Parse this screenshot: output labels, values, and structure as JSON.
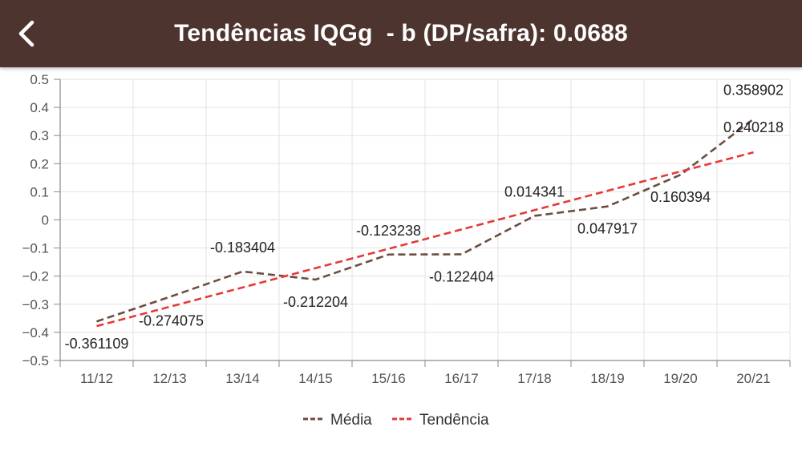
{
  "header": {
    "title": "Tendências IQGg  - b (DP/safra): 0.0688",
    "back_icon": "chevron-left-icon",
    "background_color": "#4e342e"
  },
  "chart_data": {
    "type": "line",
    "title": "",
    "xlabel": "",
    "ylabel": "",
    "categories": [
      "11/12",
      "12/13",
      "13/14",
      "14/15",
      "15/16",
      "16/17",
      "17/18",
      "18/19",
      "19/20",
      "20/21"
    ],
    "ylim": [
      -0.5,
      0.5
    ],
    "yticks": [
      -0.5,
      -0.4,
      -0.3,
      -0.2,
      -0.1,
      0,
      0.1,
      0.2,
      0.3,
      0.4,
      0.5
    ],
    "ytick_labels": [
      "−0.5",
      "−0.4",
      "−0.3",
      "−0.2",
      "−0.1",
      "0",
      "0.1",
      "0.2",
      "0.3",
      "0.4",
      "0.5"
    ],
    "grid": true,
    "legend_position": "bottom-center",
    "series": [
      {
        "name": "Média",
        "color": "#6d4c41",
        "dashed": true,
        "values": [
          -0.361109,
          -0.274075,
          -0.183404,
          -0.212204,
          -0.123238,
          -0.122404,
          0.014341,
          0.047917,
          0.160394,
          0.358902
        ],
        "labels": [
          "-0.361109",
          "-0.274075",
          "-0.183404",
          "-0.212204",
          "-0.123238",
          "-0.122404",
          "0.014341",
          "0.047917",
          "0.160394",
          "0.358902"
        ]
      },
      {
        "name": "Tendência",
        "color": "#e53935",
        "dashed": true,
        "values": [
          -0.3778,
          -0.3091,
          -0.2403,
          -0.1715,
          -0.1028,
          -0.034,
          0.0348,
          0.1035,
          0.1723,
          0.240218
        ],
        "labels": [
          "",
          "",
          "",
          "",
          "",
          "",
          "",
          "",
          "",
          "0.240218"
        ]
      }
    ]
  }
}
